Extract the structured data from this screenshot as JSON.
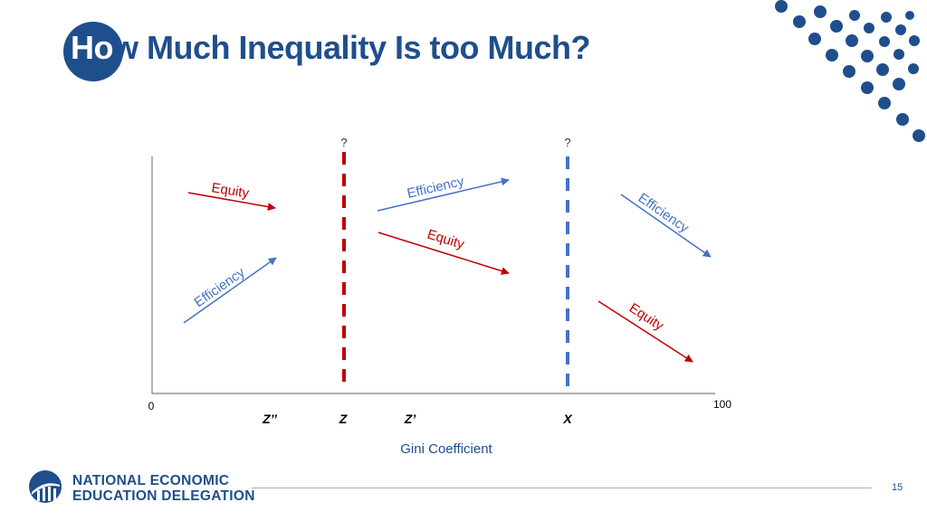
{
  "slide": {
    "title_lead": "Ho",
    "title_rest": "w Much Inequality Is too Much?",
    "page_number": "15"
  },
  "diagram": {
    "axis_start_label": "0",
    "axis_end_label": "100",
    "x_axis_title": "Gini Coefficient",
    "markers": [
      "Z’’",
      "Z",
      "Z’",
      "X"
    ],
    "boundary_labels": [
      "?",
      "?"
    ],
    "arrow_labels": {
      "equity": "Equity",
      "efficiency": "Efficiency"
    },
    "colors": {
      "equity": "#c00000",
      "efficiency": "#4472c4",
      "boundary_z": "#c00000",
      "boundary_x": "#4472c4",
      "brand": "#1f4e8c"
    }
  },
  "footer": {
    "org_line1": "NATIONAL ECONOMIC",
    "org_line2": "EDUCATION DELEGATION"
  }
}
